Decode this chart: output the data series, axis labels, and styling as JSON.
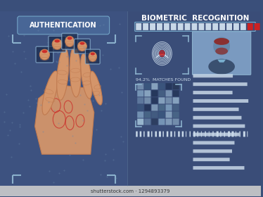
{
  "bg_color": "#3a4f7a",
  "bg_color_left": "#3d5280",
  "bg_color_right": "#3a4d78",
  "title_left": "AUTHENTICATION",
  "title_right": "BIOMETRIC  RECOGNITION",
  "title_color": "#ffffff",
  "accent_red": "#cc2222",
  "skin_color": "#d4956a",
  "skin_dark": "#c07a50",
  "scanner_box_color": "#8ab0d0",
  "line_color": "#7ab0d0",
  "progress_white": "#c8d8e8",
  "progress_red": "#cc2222",
  "match_text": "94,2%  MATCHES FOUND",
  "text_color_light": "#c8d8e8",
  "qr_colors": [
    "#2a3a5a",
    "#4a6888",
    "#7a9aba",
    "#9ab8d0",
    "#3a5a80",
    "#1a2a4a"
  ],
  "figsize": [
    3.74,
    2.8
  ],
  "dpi": 100
}
